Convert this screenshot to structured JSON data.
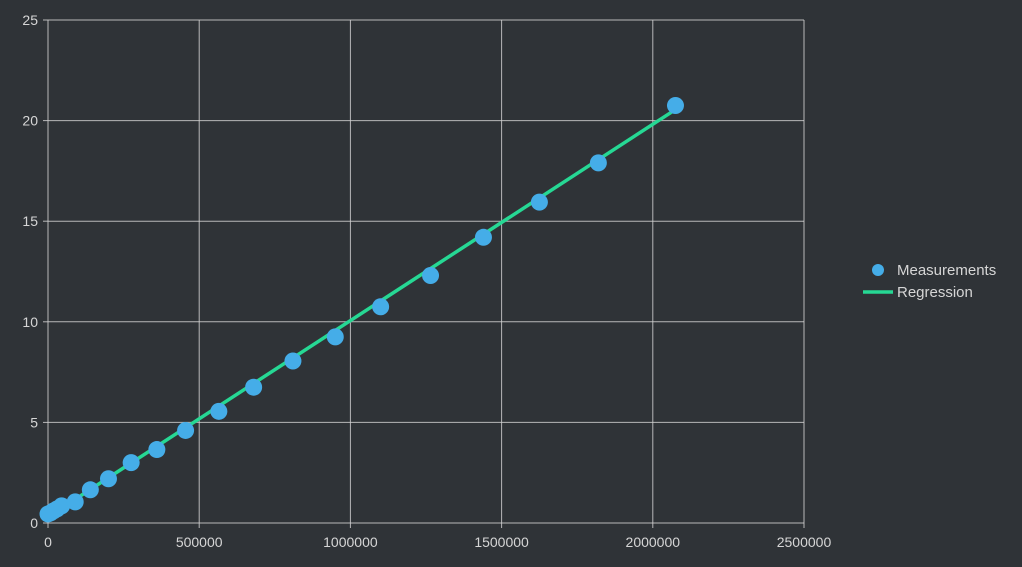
{
  "chart_data": {
    "type": "scatter",
    "title": "",
    "xlabel": "",
    "ylabel": "",
    "xlim": [
      0,
      2500000
    ],
    "ylim": [
      0,
      25
    ],
    "x_ticks": [
      0,
      500000,
      1000000,
      1500000,
      2000000,
      2500000
    ],
    "y_ticks": [
      0,
      5,
      10,
      15,
      20,
      25
    ],
    "x_tick_labels": [
      "0",
      "500000",
      "1000000",
      "1500000",
      "2000000",
      "2500000"
    ],
    "y_tick_labels": [
      "0",
      "5",
      "10",
      "15",
      "20",
      "25"
    ],
    "grid": true,
    "legend_position": "right",
    "series": [
      {
        "name": "Measurements",
        "kind": "scatter",
        "color": "#45ade8",
        "points": [
          {
            "x": 0,
            "y": 0.45
          },
          {
            "x": 8000,
            "y": 0.5
          },
          {
            "x": 18000,
            "y": 0.6
          },
          {
            "x": 30000,
            "y": 0.7
          },
          {
            "x": 45000,
            "y": 0.85
          },
          {
            "x": 90000,
            "y": 1.05
          },
          {
            "x": 140000,
            "y": 1.65
          },
          {
            "x": 200000,
            "y": 2.2
          },
          {
            "x": 275000,
            "y": 3.0
          },
          {
            "x": 360000,
            "y": 3.65
          },
          {
            "x": 455000,
            "y": 4.6
          },
          {
            "x": 565000,
            "y": 5.55
          },
          {
            "x": 680000,
            "y": 6.75
          },
          {
            "x": 810000,
            "y": 8.05
          },
          {
            "x": 950000,
            "y": 9.25
          },
          {
            "x": 1100000,
            "y": 10.75
          },
          {
            "x": 1265000,
            "y": 12.3
          },
          {
            "x": 1440000,
            "y": 14.2
          },
          {
            "x": 1625000,
            "y": 15.95
          },
          {
            "x": 1820000,
            "y": 17.9
          },
          {
            "x": 2075000,
            "y": 20.75
          }
        ]
      },
      {
        "name": "Regression",
        "kind": "line",
        "color": "#26d894",
        "points": [
          {
            "x": 0,
            "y": 0.3
          },
          {
            "x": 2075000,
            "y": 20.55
          }
        ]
      }
    ]
  }
}
